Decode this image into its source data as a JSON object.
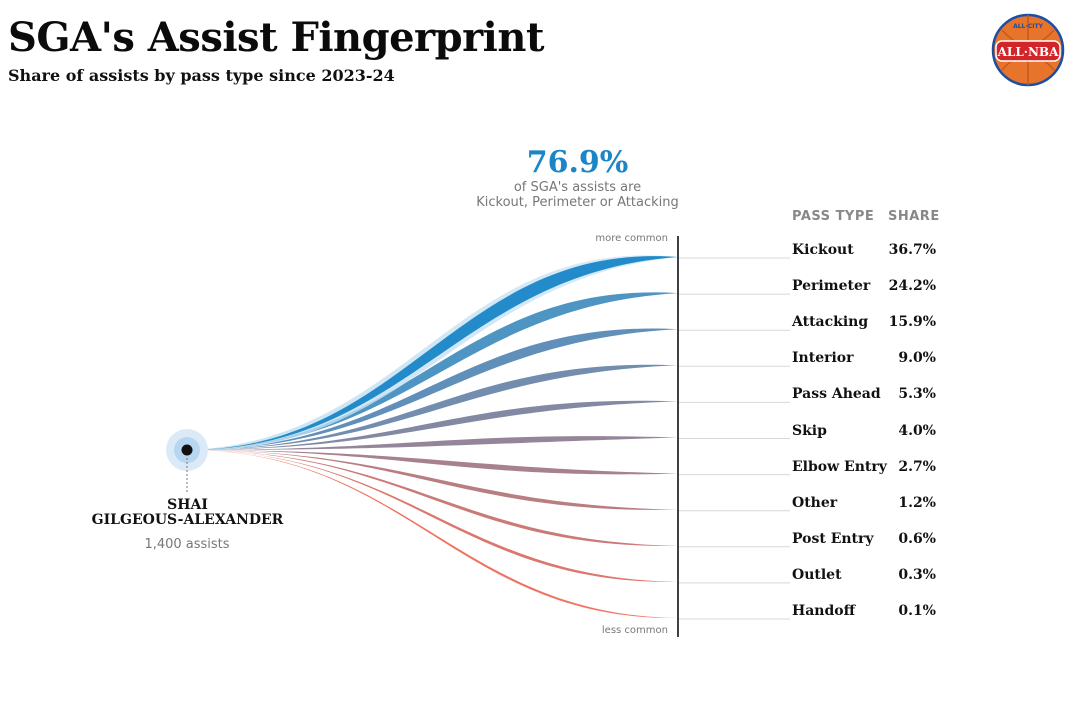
{
  "header": {
    "title": "SGA's Assist Fingerprint",
    "subtitle": "Share of assists by pass type since 2023-24"
  },
  "logo": {
    "top_text": "ALL-CITY",
    "main_text": "ALL·NBA"
  },
  "callout": {
    "value": "76.9%",
    "line1": "of SGA's assists are",
    "line2": "Kickout, Perimeter or Attacking"
  },
  "player": {
    "name_line1": "SHAI",
    "name_line2": "GILGEOUS-ALEXANDER",
    "assists": "1,400 assists"
  },
  "axis_notes": {
    "top": "more common",
    "bottom": "less common"
  },
  "table": {
    "col1": "PASS TYPE",
    "col2": "SHARE"
  },
  "chart_data": {
    "type": "table",
    "title": "SGA's Assist Fingerprint",
    "subtitle": "Share of assists by pass type since 2023-24",
    "categories": [
      "Kickout",
      "Perimeter",
      "Attacking",
      "Interior",
      "Pass Ahead",
      "Skip",
      "Elbow Entry",
      "Other",
      "Post Entry",
      "Outlet",
      "Handoff"
    ],
    "values": [
      36.7,
      24.2,
      15.9,
      9.0,
      5.3,
      4.0,
      2.7,
      1.2,
      0.6,
      0.3,
      0.1
    ],
    "labels": [
      "36.7%",
      "24.2%",
      "15.9%",
      "9.0%",
      "5.3%",
      "4.0%",
      "2.7%",
      "1.2%",
      "0.6%",
      "0.3%",
      "0.1%"
    ],
    "total_assists": 1400
  },
  "colors": {
    "top": "#1a86c7",
    "bottom": "#ec5a45",
    "logo_orange": "#e8742c",
    "logo_blue": "#1d4ea1",
    "logo_red": "#d2252a"
  }
}
